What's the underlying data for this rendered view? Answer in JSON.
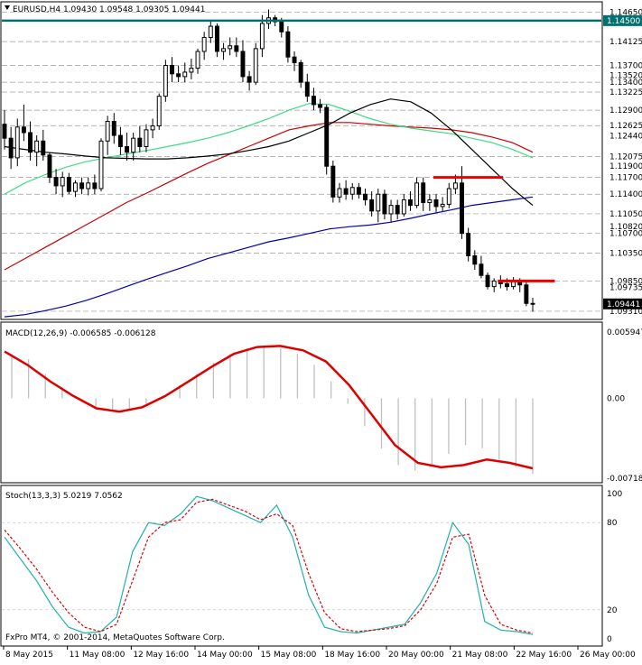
{
  "header": {
    "symbol_info": "EURUSD,H4  1.09430 1.09548 1.09305 1.09441",
    "macd_label": "MACD(12,26,9) -0.006585 -0.006128",
    "stoch_label": "Stoch(13,3,3) 5.0219 7.0562",
    "copyright": "FxPro MT4, © 2001-2014, MetaQuotes Software Corp."
  },
  "colors": {
    "background": "#ffffff",
    "grid": "#999999",
    "candle": "#000000",
    "ma_fast": "#000000",
    "ma_green": "#3ddc84",
    "ma_red": "#cc0000",
    "ma_blue": "#0000b0",
    "level_line": "#007070",
    "resistance": "#ee0000",
    "macd_hist": "#c0c0c0",
    "macd_signal": "#dd0000",
    "stoch_main": "#20b2aa",
    "stoch_signal": "#dd0000",
    "price_tag": "#000000"
  },
  "chart_data": [
    {
      "type": "candlestick",
      "title": "EURUSD,H4",
      "ylim": [
        1.0918,
        1.1482
      ],
      "current_price": "1.09441",
      "key_level": {
        "value": 1.145,
        "label": "1.14500"
      },
      "price_labels": [
        "1.14650",
        "1.14125",
        "1.13700",
        "1.13520",
        "1.13400",
        "1.13225",
        "1.12900",
        "1.12625",
        "1.12440",
        "1.12075",
        "1.11900",
        "1.11700",
        "1.11400",
        "1.11050",
        "1.10820",
        "1.10700",
        "1.10350",
        "1.09850",
        "1.09735",
        "1.09441",
        "1.09310"
      ],
      "dashed_levels": [
        1.1465,
        1.145,
        1.14125,
        1.137,
        1.134,
        1.13225,
        1.129,
        1.12625,
        1.12075,
        1.117,
        1.114,
        1.1105,
        1.107,
        1.1035,
        1.0985,
        1.0931
      ],
      "candles": [
        {
          "o": 1.1265,
          "h": 1.129,
          "l": 1.122,
          "c": 1.124
        },
        {
          "o": 1.124,
          "h": 1.126,
          "l": 1.1185,
          "c": 1.1205
        },
        {
          "o": 1.1205,
          "h": 1.1275,
          "l": 1.119,
          "c": 1.126
        },
        {
          "o": 1.126,
          "h": 1.13,
          "l": 1.1235,
          "c": 1.125
        },
        {
          "o": 1.125,
          "h": 1.127,
          "l": 1.12,
          "c": 1.1215
        },
        {
          "o": 1.1215,
          "h": 1.1245,
          "l": 1.119,
          "c": 1.1235
        },
        {
          "o": 1.1235,
          "h": 1.1255,
          "l": 1.12,
          "c": 1.121
        },
        {
          "o": 1.121,
          "h": 1.1215,
          "l": 1.116,
          "c": 1.117
        },
        {
          "o": 1.117,
          "h": 1.1185,
          "l": 1.114,
          "c": 1.1155
        },
        {
          "o": 1.1155,
          "h": 1.118,
          "l": 1.1135,
          "c": 1.117
        },
        {
          "o": 1.117,
          "h": 1.1178,
          "l": 1.114,
          "c": 1.1145
        },
        {
          "o": 1.1145,
          "h": 1.1165,
          "l": 1.1135,
          "c": 1.116
        },
        {
          "o": 1.116,
          "h": 1.117,
          "l": 1.114,
          "c": 1.115
        },
        {
          "o": 1.115,
          "h": 1.117,
          "l": 1.1138,
          "c": 1.116
        },
        {
          "o": 1.116,
          "h": 1.1175,
          "l": 1.114,
          "c": 1.115
        },
        {
          "o": 1.115,
          "h": 1.124,
          "l": 1.1145,
          "c": 1.1235
        },
        {
          "o": 1.1235,
          "h": 1.128,
          "l": 1.121,
          "c": 1.127
        },
        {
          "o": 1.127,
          "h": 1.1285,
          "l": 1.123,
          "c": 1.1245
        },
        {
          "o": 1.1245,
          "h": 1.126,
          "l": 1.121,
          "c": 1.1225
        },
        {
          "o": 1.1225,
          "h": 1.125,
          "l": 1.12,
          "c": 1.1215
        },
        {
          "o": 1.1215,
          "h": 1.125,
          "l": 1.12,
          "c": 1.124
        },
        {
          "o": 1.124,
          "h": 1.1262,
          "l": 1.1215,
          "c": 1.1225
        },
        {
          "o": 1.1225,
          "h": 1.1265,
          "l": 1.1215,
          "c": 1.1255
        },
        {
          "o": 1.1255,
          "h": 1.1275,
          "l": 1.124,
          "c": 1.1262
        },
        {
          "o": 1.1262,
          "h": 1.132,
          "l": 1.1255,
          "c": 1.1315
        },
        {
          "o": 1.1315,
          "h": 1.138,
          "l": 1.1305,
          "c": 1.137
        },
        {
          "o": 1.137,
          "h": 1.1385,
          "l": 1.134,
          "c": 1.1355
        },
        {
          "o": 1.1355,
          "h": 1.137,
          "l": 1.134,
          "c": 1.135
        },
        {
          "o": 1.135,
          "h": 1.1375,
          "l": 1.134,
          "c": 1.1358
        },
        {
          "o": 1.1358,
          "h": 1.1382,
          "l": 1.1345,
          "c": 1.1365
        },
        {
          "o": 1.1365,
          "h": 1.14,
          "l": 1.1355,
          "c": 1.1395
        },
        {
          "o": 1.1395,
          "h": 1.143,
          "l": 1.138,
          "c": 1.142
        },
        {
          "o": 1.142,
          "h": 1.145,
          "l": 1.141,
          "c": 1.144
        },
        {
          "o": 1.144,
          "h": 1.1445,
          "l": 1.1385,
          "c": 1.1395
        },
        {
          "o": 1.1395,
          "h": 1.141,
          "l": 1.138,
          "c": 1.14
        },
        {
          "o": 1.14,
          "h": 1.142,
          "l": 1.1388,
          "c": 1.1405
        },
        {
          "o": 1.1405,
          "h": 1.142,
          "l": 1.1385,
          "c": 1.1395
        },
        {
          "o": 1.1395,
          "h": 1.1415,
          "l": 1.134,
          "c": 1.135
        },
        {
          "o": 1.135,
          "h": 1.136,
          "l": 1.1325,
          "c": 1.134
        },
        {
          "o": 1.134,
          "h": 1.141,
          "l": 1.1335,
          "c": 1.14
        },
        {
          "o": 1.14,
          "h": 1.146,
          "l": 1.1385,
          "c": 1.1445
        },
        {
          "o": 1.1445,
          "h": 1.147,
          "l": 1.1435,
          "c": 1.1455
        },
        {
          "o": 1.1455,
          "h": 1.146,
          "l": 1.144,
          "c": 1.1448
        },
        {
          "o": 1.1448,
          "h": 1.1455,
          "l": 1.142,
          "c": 1.143
        },
        {
          "o": 1.143,
          "h": 1.144,
          "l": 1.1375,
          "c": 1.1385
        },
        {
          "o": 1.1385,
          "h": 1.1395,
          "l": 1.136,
          "c": 1.1375
        },
        {
          "o": 1.1375,
          "h": 1.138,
          "l": 1.133,
          "c": 1.134
        },
        {
          "o": 1.134,
          "h": 1.1355,
          "l": 1.1305,
          "c": 1.1315
        },
        {
          "o": 1.1315,
          "h": 1.133,
          "l": 1.129,
          "c": 1.13
        },
        {
          "o": 1.13,
          "h": 1.131,
          "l": 1.1285,
          "c": 1.1295
        },
        {
          "o": 1.1295,
          "h": 1.13,
          "l": 1.1175,
          "c": 1.119
        },
        {
          "o": 1.119,
          "h": 1.12,
          "l": 1.1125,
          "c": 1.1135
        },
        {
          "o": 1.1135,
          "h": 1.116,
          "l": 1.1125,
          "c": 1.115
        },
        {
          "o": 1.115,
          "h": 1.1165,
          "l": 1.113,
          "c": 1.114
        },
        {
          "o": 1.114,
          "h": 1.116,
          "l": 1.113,
          "c": 1.1152
        },
        {
          "o": 1.1152,
          "h": 1.116,
          "l": 1.1132,
          "c": 1.114
        },
        {
          "o": 1.114,
          "h": 1.115,
          "l": 1.112,
          "c": 1.113
        },
        {
          "o": 1.113,
          "h": 1.1145,
          "l": 1.11,
          "c": 1.111
        },
        {
          "o": 1.111,
          "h": 1.115,
          "l": 1.109,
          "c": 1.114
        },
        {
          "o": 1.114,
          "h": 1.1148,
          "l": 1.1095,
          "c": 1.1105
        },
        {
          "o": 1.1105,
          "h": 1.113,
          "l": 1.109,
          "c": 1.112
        },
        {
          "o": 1.112,
          "h": 1.113,
          "l": 1.1095,
          "c": 1.1105
        },
        {
          "o": 1.1105,
          "h": 1.114,
          "l": 1.11,
          "c": 1.113
        },
        {
          "o": 1.113,
          "h": 1.1145,
          "l": 1.111,
          "c": 1.112
        },
        {
          "o": 1.112,
          "h": 1.117,
          "l": 1.1115,
          "c": 1.116
        },
        {
          "o": 1.116,
          "h": 1.117,
          "l": 1.111,
          "c": 1.1125
        },
        {
          "o": 1.1125,
          "h": 1.114,
          "l": 1.111,
          "c": 1.113
        },
        {
          "o": 1.113,
          "h": 1.114,
          "l": 1.1108,
          "c": 1.1118
        },
        {
          "o": 1.1118,
          "h": 1.1135,
          "l": 1.111,
          "c": 1.1122
        },
        {
          "o": 1.1122,
          "h": 1.116,
          "l": 1.1115,
          "c": 1.115
        },
        {
          "o": 1.115,
          "h": 1.1175,
          "l": 1.114,
          "c": 1.116
        },
        {
          "o": 1.116,
          "h": 1.119,
          "l": 1.106,
          "c": 1.107
        },
        {
          "o": 1.107,
          "h": 1.108,
          "l": 1.102,
          "c": 1.103
        },
        {
          "o": 1.103,
          "h": 1.104,
          "l": 1.1005,
          "c": 1.1015
        },
        {
          "o": 1.1015,
          "h": 1.103,
          "l": 1.099,
          "c": 1.0995
        },
        {
          "o": 1.0995,
          "h": 1.1,
          "l": 1.097,
          "c": 1.0975
        },
        {
          "o": 1.0975,
          "h": 1.099,
          "l": 1.0965,
          "c": 1.0985
        },
        {
          "o": 1.0985,
          "h": 1.0995,
          "l": 1.0972,
          "c": 1.098
        },
        {
          "o": 1.098,
          "h": 1.099,
          "l": 1.0968,
          "c": 1.0975
        },
        {
          "o": 1.0975,
          "h": 1.0992,
          "l": 1.097,
          "c": 1.0985
        },
        {
          "o": 1.0985,
          "h": 1.099,
          "l": 1.0965,
          "c": 1.0978
        },
        {
          "o": 1.0978,
          "h": 1.0985,
          "l": 1.094,
          "c": 1.0945
        },
        {
          "o": 1.0945,
          "h": 1.0955,
          "l": 1.093,
          "c": 1.0944
        }
      ],
      "ma_fast": [
        1.1225,
        1.122,
        1.1215,
        1.1212,
        1.1208,
        1.1205,
        1.1204,
        1.1203,
        1.1203,
        1.1205,
        1.1208,
        1.1212,
        1.1218,
        1.1225,
        1.1235,
        1.125,
        1.1265,
        1.1285,
        1.13,
        1.131,
        1.1305,
        1.1285,
        1.1255,
        1.122,
        1.1185,
        1.115,
        1.112
      ],
      "ma_green": [
        1.114,
        1.116,
        1.1175,
        1.1188,
        1.1198,
        1.1205,
        1.1212,
        1.1218,
        1.1225,
        1.1232,
        1.124,
        1.125,
        1.1262,
        1.1275,
        1.129,
        1.1302,
        1.13,
        1.1288,
        1.1275,
        1.1265,
        1.1258,
        1.1253,
        1.1248,
        1.124,
        1.1232,
        1.122,
        1.1205
      ],
      "ma_red": [
        1.1005,
        1.1025,
        1.1045,
        1.1065,
        1.1085,
        1.1105,
        1.1125,
        1.1142,
        1.116,
        1.1178,
        1.1195,
        1.121,
        1.1225,
        1.124,
        1.1255,
        1.1262,
        1.1268,
        1.1268,
        1.1265,
        1.1262,
        1.126,
        1.1258,
        1.1255,
        1.125,
        1.1242,
        1.1232,
        1.1215
      ],
      "ma_blue": [
        1.0921,
        1.0925,
        1.0932,
        1.094,
        1.095,
        1.0962,
        1.0975,
        1.0988,
        1.1,
        1.1012,
        1.1025,
        1.1035,
        1.1045,
        1.1055,
        1.1062,
        1.107,
        1.1078,
        1.1082,
        1.1085,
        1.109,
        1.1097,
        1.1105,
        1.1112,
        1.112,
        1.1125,
        1.113,
        1.1135
      ],
      "resistance_lines": [
        {
          "from": 67,
          "to": 77,
          "value": 1.117
        },
        {
          "from": 77,
          "to": 85,
          "value": 1.0985
        }
      ],
      "x_labels": [
        "8 May 2015",
        "11 May 08:00",
        "12 May 16:00",
        "14 May 00:00",
        "15 May 08:00",
        "18 May 16:00",
        "20 May 00:00",
        "21 May 08:00",
        "22 May 16:00",
        "26 May 00:00"
      ]
    },
    {
      "type": "macd",
      "title": "MACD(12,26,9) -0.006585 -0.006128",
      "ylim": [
        -0.00718,
        0.005947
      ],
      "y_labels": [
        "0.005947",
        "0.00",
        "-0.00718"
      ],
      "histogram": [
        0.004,
        0.0035,
        0.0022,
        0.001,
        0.0,
        -0.0008,
        -0.0012,
        -0.001,
        -0.0005,
        0.0002,
        0.0012,
        0.0022,
        0.0032,
        0.004,
        0.0045,
        0.0047,
        0.0045,
        0.004,
        0.003,
        0.0015,
        -0.0005,
        -0.0025,
        -0.0045,
        -0.006,
        -0.0065,
        -0.006,
        -0.005,
        -0.0042,
        -0.0045,
        -0.0055,
        -0.0062,
        -0.0068
      ],
      "signal": [
        0.0042,
        0.003,
        0.0015,
        0.0002,
        -0.0009,
        -0.0012,
        -0.0008,
        0.0002,
        0.0015,
        0.0028,
        0.004,
        0.0046,
        0.0047,
        0.0043,
        0.0033,
        0.0012,
        -0.0015,
        -0.0042,
        -0.0058,
        -0.0062,
        -0.006,
        -0.0055,
        -0.0058,
        -0.0063
      ]
    },
    {
      "type": "stochastic",
      "title": "Stoch(13,3,3) 5.0219 7.0562",
      "ylim": [
        0,
        100
      ],
      "y_labels": [
        "100",
        "80",
        "20",
        "0"
      ],
      "main": [
        70,
        55,
        40,
        22,
        8,
        4,
        5,
        15,
        60,
        80,
        78,
        86,
        98,
        95,
        90,
        85,
        80,
        92,
        70,
        30,
        8,
        5,
        4,
        6,
        8,
        10,
        25,
        45,
        80,
        65,
        12,
        6,
        5,
        3
      ],
      "signal": [
        75,
        62,
        48,
        32,
        18,
        8,
        5,
        10,
        40,
        70,
        80,
        82,
        94,
        96,
        92,
        88,
        82,
        86,
        78,
        45,
        18,
        7,
        5,
        6,
        7,
        9,
        20,
        38,
        70,
        72,
        30,
        10,
        6,
        4
      ]
    }
  ]
}
